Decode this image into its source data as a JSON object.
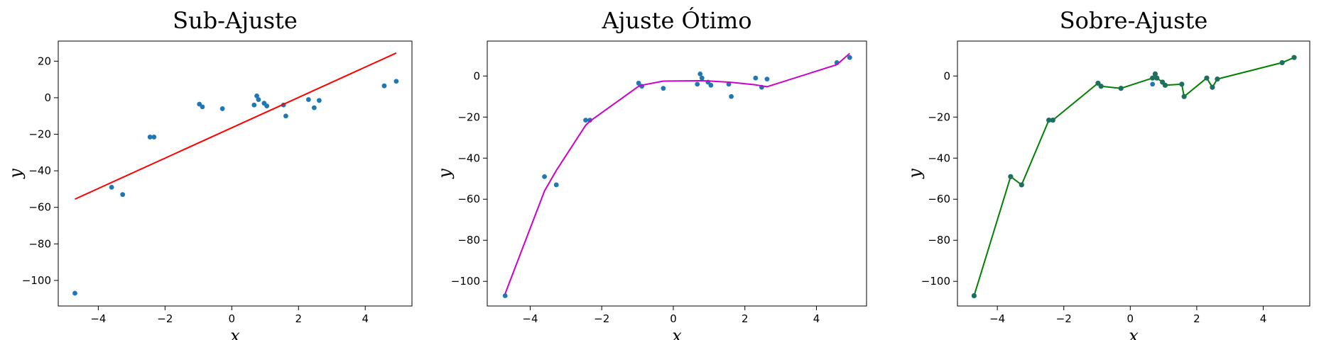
{
  "chart_data": [
    {
      "type": "scatter",
      "title": "Sub-Ajuste",
      "xlabel": "x",
      "ylabel": "y",
      "xlim": [
        -5.2,
        5.4
      ],
      "ylim": [
        -114,
        31
      ],
      "xticks": [
        -4,
        -2,
        0,
        2,
        4
      ],
      "yticks": [
        20,
        0,
        -20,
        -40,
        -60,
        -80,
        -100
      ],
      "grid": false,
      "series": [
        {
          "kind": "points",
          "color": "#1f77b4",
          "x": [
            -4.7,
            -3.6,
            -3.27,
            -2.45,
            -2.33,
            -0.97,
            -0.88,
            -0.28,
            0.67,
            0.75,
            0.8,
            0.97,
            1.05,
            1.55,
            1.62,
            2.3,
            2.47,
            2.62,
            4.57,
            4.93
          ],
          "y": [
            -107,
            -49,
            -53,
            -21.5,
            -21.5,
            -3.5,
            -5,
            -6,
            -4,
            1,
            -1,
            -3,
            -4.5,
            -4,
            -10,
            -1,
            -5.5,
            -1.5,
            6.5,
            9
          ]
        },
        {
          "kind": "line",
          "color": "#ff0000",
          "x": [
            -4.7,
            4.93
          ],
          "y": [
            -55.5,
            24.5
          ]
        }
      ]
    },
    {
      "type": "scatter",
      "title": "Ajuste Ótimo",
      "xlabel": "x",
      "ylabel": "y",
      "xlim": [
        -5.2,
        5.4
      ],
      "ylim": [
        -112,
        17
      ],
      "xticks": [
        -4,
        -2,
        0,
        2,
        4
      ],
      "yticks": [
        0,
        -20,
        -40,
        -60,
        -80,
        -100
      ],
      "grid": false,
      "series": [
        {
          "kind": "points",
          "color": "#1f77b4",
          "x": [
            -4.7,
            -3.6,
            -3.27,
            -2.45,
            -2.33,
            -0.97,
            -0.88,
            -0.28,
            0.67,
            0.75,
            0.8,
            0.97,
            1.05,
            1.55,
            1.62,
            2.3,
            2.47,
            2.62,
            4.57,
            4.93
          ],
          "y": [
            -107,
            -49,
            -53,
            -21.5,
            -21.5,
            -3.5,
            -5,
            -6,
            -4,
            1,
            -1,
            -3,
            -4.5,
            -4,
            -10,
            -1,
            -5.5,
            -1.5,
            6.5,
            9
          ]
        },
        {
          "kind": "line",
          "color": "#cc00cc",
          "x": [
            -4.7,
            -3.6,
            -3.27,
            -2.45,
            -2.33,
            -0.97,
            -0.88,
            -0.28,
            0.67,
            0.75,
            0.8,
            0.97,
            1.05,
            1.55,
            1.62,
            2.3,
            2.47,
            2.62,
            4.57,
            4.93
          ],
          "y": [
            -106,
            -56,
            -46,
            -24,
            -22,
            -5,
            -4.5,
            -2.5,
            -2.3,
            -2.3,
            -2.3,
            -2.4,
            -2.5,
            -3,
            -3.1,
            -4.3,
            -4.8,
            -5.2,
            5.5,
            11
          ]
        }
      ]
    },
    {
      "type": "line",
      "title": "Sobre-Ajuste",
      "xlabel": "x",
      "ylabel": "y",
      "xlim": [
        -5.2,
        5.4
      ],
      "ylim": [
        -112,
        17
      ],
      "xticks": [
        -4,
        -2,
        0,
        2,
        4
      ],
      "yticks": [
        0,
        -20,
        -40,
        -60,
        -80,
        -100
      ],
      "grid": false,
      "series": [
        {
          "kind": "points",
          "color": "#1f77b4",
          "x": [
            -4.7,
            -3.6,
            -3.27,
            -2.45,
            -2.33,
            -0.97,
            -0.88,
            -0.28,
            0.67,
            0.75,
            0.8,
            0.97,
            1.05,
            1.55,
            1.62,
            2.3,
            2.47,
            2.62,
            4.57,
            4.93
          ],
          "y": [
            -107,
            -49,
            -53,
            -21.5,
            -21.5,
            -3.5,
            -5,
            -6,
            -4,
            1,
            -1,
            -3,
            -4.5,
            -4,
            -10,
            -1,
            -5.5,
            -1.5,
            6.5,
            9
          ]
        },
        {
          "kind": "line-markers",
          "color": "#008000",
          "x": [
            -4.7,
            -3.6,
            -3.27,
            -2.45,
            -2.33,
            -0.97,
            -0.88,
            -0.28,
            0.67,
            0.75,
            0.8,
            0.97,
            1.05,
            1.55,
            1.62,
            2.3,
            2.47,
            2.62,
            4.57,
            4.93
          ],
          "y": [
            -107,
            -49,
            -53,
            -21.5,
            -21.5,
            -3.5,
            -5,
            -6,
            -1,
            1,
            -1,
            -3,
            -4.5,
            -4,
            -10,
            -1,
            -5.5,
            -1.5,
            6.5,
            9
          ]
        }
      ]
    }
  ]
}
